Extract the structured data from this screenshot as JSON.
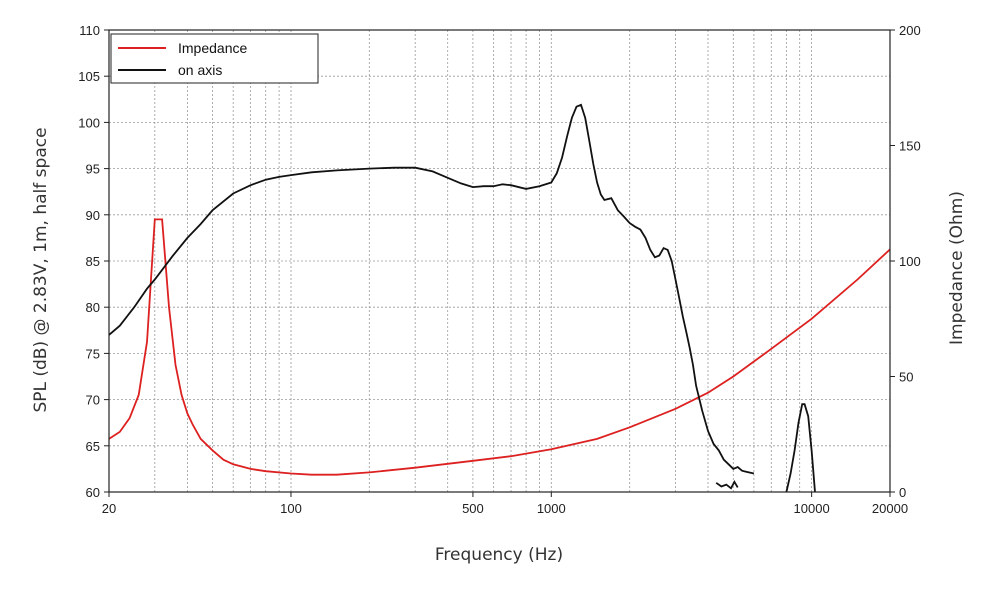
{
  "chart_data": {
    "type": "line",
    "title": "",
    "xlabel": "Frequency (Hz)",
    "ylabel": "SPL (dB) @ 2.83V, 1m, half space",
    "y2label": "Impedance (Ohm)",
    "xscale": "log",
    "xlim": [
      20,
      20000
    ],
    "ylim": [
      60,
      110
    ],
    "y2lim": [
      0,
      200
    ],
    "grid": true,
    "legend_position": "top-left",
    "x_ticks": [
      20,
      100,
      500,
      1000,
      10000,
      20000
    ],
    "x_tick_labels": [
      "20",
      "100",
      "500",
      "1000",
      "10000",
      "20000"
    ],
    "y_ticks": [
      60,
      65,
      70,
      75,
      80,
      85,
      90,
      95,
      100,
      105,
      110
    ],
    "y_tick_labels": [
      "60",
      "65",
      "70",
      "75",
      "80",
      "85",
      "90",
      "95",
      "100",
      "105",
      "110"
    ],
    "y2_ticks": [
      0,
      50,
      100,
      150,
      200
    ],
    "y2_tick_labels": [
      "0",
      "50",
      "100",
      "150",
      "200"
    ],
    "colors": {
      "impedance": "#dd2020",
      "on_axis": "#111111",
      "grid": "#9a9a9a",
      "frame": "#222222"
    },
    "series": [
      {
        "name": "Impedance",
        "axis": "right",
        "color": "#dd2020",
        "x": [
          20,
          22,
          24,
          26,
          28,
          30,
          32,
          34,
          36,
          38,
          40,
          42,
          45,
          50,
          55,
          60,
          70,
          80,
          100,
          120,
          150,
          200,
          300,
          500,
          700,
          1000,
          1500,
          2000,
          3000,
          4000,
          5000,
          7000,
          10000,
          15000,
          20000
        ],
        "values": [
          23,
          26,
          32,
          42,
          65,
          118,
          118,
          80,
          55,
          42,
          34,
          29,
          23,
          18,
          14,
          12,
          10,
          9,
          8,
          7.5,
          7.5,
          8.5,
          10.5,
          13.5,
          15.5,
          18.5,
          23,
          28,
          36,
          43,
          50,
          62,
          75,
          92,
          105
        ]
      },
      {
        "name": "on axis",
        "axis": "left",
        "color": "#111111",
        "x": [
          20,
          22,
          25,
          28,
          30,
          35,
          40,
          45,
          50,
          60,
          70,
          80,
          90,
          100,
          120,
          150,
          200,
          250,
          300,
          350,
          400,
          450,
          500,
          550,
          600,
          650,
          700,
          800,
          900,
          1000,
          1050,
          1100,
          1150,
          1200,
          1250,
          1300,
          1350,
          1400,
          1450,
          1500,
          1550,
          1600,
          1700,
          1800,
          1900,
          2000,
          2100,
          2200,
          2300,
          2400,
          2500,
          2600,
          2700,
          2800,
          2900,
          3000,
          3100,
          3200,
          3300,
          3400,
          3500,
          3600,
          3800,
          4000,
          4200,
          4400,
          4600,
          4800,
          5000,
          5200,
          5400,
          5600,
          5800,
          6000
        ],
        "values": [
          77,
          78,
          80,
          82,
          83,
          85.5,
          87.5,
          89,
          90.5,
          92.3,
          93.2,
          93.8,
          94.1,
          94.3,
          94.6,
          94.8,
          95,
          95.1,
          95.1,
          94.7,
          94,
          93.4,
          93,
          93.1,
          93.1,
          93.3,
          93.2,
          92.8,
          93.1,
          93.5,
          94.5,
          96.2,
          98.5,
          100.5,
          101.7,
          101.9,
          100.5,
          98,
          95.5,
          93.5,
          92.2,
          91.6,
          91.8,
          90.5,
          89.8,
          89.1,
          88.7,
          88.4,
          87.5,
          86.2,
          85.4,
          85.6,
          86.4,
          86.2,
          85,
          83,
          81,
          79,
          77.3,
          75.6,
          73.8,
          71.5,
          68.8,
          66.6,
          65.2,
          64.5,
          63.5,
          63,
          62.5,
          62.7,
          62.3,
          62.2,
          62.1,
          62.0
        ]
      }
    ],
    "on_axis_fragments": [
      {
        "x": [
          4300,
          4500,
          4700,
          4900,
          5050,
          5200
        ],
        "values": [
          61,
          60.6,
          60.8,
          60.4,
          61.1,
          60.5
        ]
      },
      {
        "x": [
          8000,
          8300,
          8600,
          8900,
          9200,
          9400,
          9700,
          10000,
          10300
        ],
        "values": [
          60,
          62,
          64.5,
          67.5,
          69.5,
          69.5,
          68.2,
          64.5,
          60
        ]
      }
    ]
  }
}
